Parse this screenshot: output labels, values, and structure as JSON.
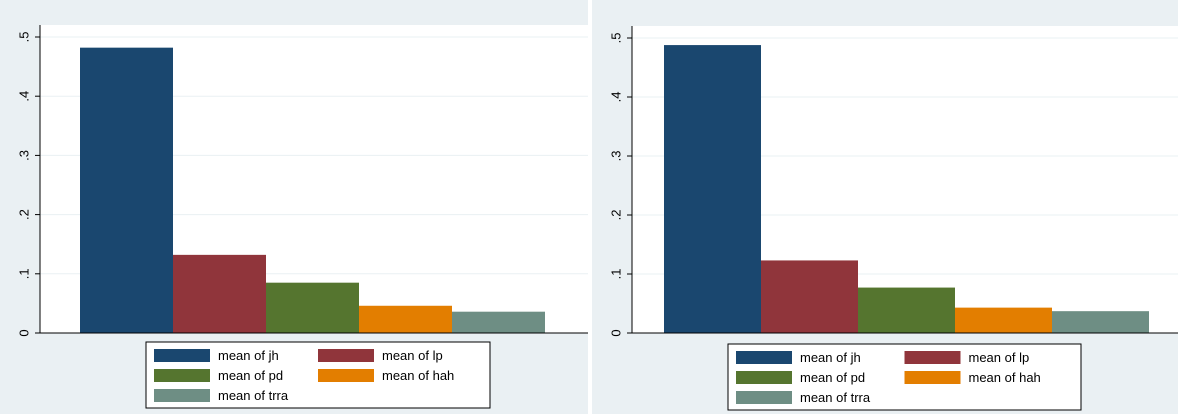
{
  "chart_data": [
    {
      "type": "bar",
      "categories": [
        ""
      ],
      "ylim": [
        0,
        0.5
      ],
      "yticks": [
        0,
        0.1,
        0.2,
        0.3,
        0.4,
        0.5
      ],
      "ytick_labels": [
        "0",
        ".1",
        ".2",
        ".3",
        ".4",
        ".5"
      ],
      "grid": true,
      "legend_position": "bottom",
      "series": [
        {
          "name": "mean of jh",
          "values": [
            0.482
          ],
          "color": "#1a476f"
        },
        {
          "name": "mean of lp",
          "values": [
            0.132
          ],
          "color": "#90353b"
        },
        {
          "name": "mean of pd",
          "values": [
            0.085
          ],
          "color": "#55752f"
        },
        {
          "name": "mean of hah",
          "values": [
            0.046
          ],
          "color": "#e37e00"
        },
        {
          "name": "mean of trra",
          "values": [
            0.036
          ],
          "color": "#6e8e84"
        }
      ]
    },
    {
      "type": "bar",
      "categories": [
        ""
      ],
      "ylim": [
        0,
        0.5
      ],
      "yticks": [
        0,
        0.1,
        0.2,
        0.3,
        0.4,
        0.5
      ],
      "ytick_labels": [
        "0",
        ".1",
        ".2",
        ".3",
        ".4",
        ".5"
      ],
      "grid": true,
      "legend_position": "bottom",
      "series": [
        {
          "name": "mean of jh",
          "values": [
            0.488
          ],
          "color": "#1a476f"
        },
        {
          "name": "mean of lp",
          "values": [
            0.123
          ],
          "color": "#90353b"
        },
        {
          "name": "mean of pd",
          "values": [
            0.077
          ],
          "color": "#55752f"
        },
        {
          "name": "mean of hah",
          "values": [
            0.043
          ],
          "color": "#e37e00"
        },
        {
          "name": "mean of trra",
          "values": [
            0.037
          ],
          "color": "#6e8e84"
        }
      ]
    }
  ]
}
